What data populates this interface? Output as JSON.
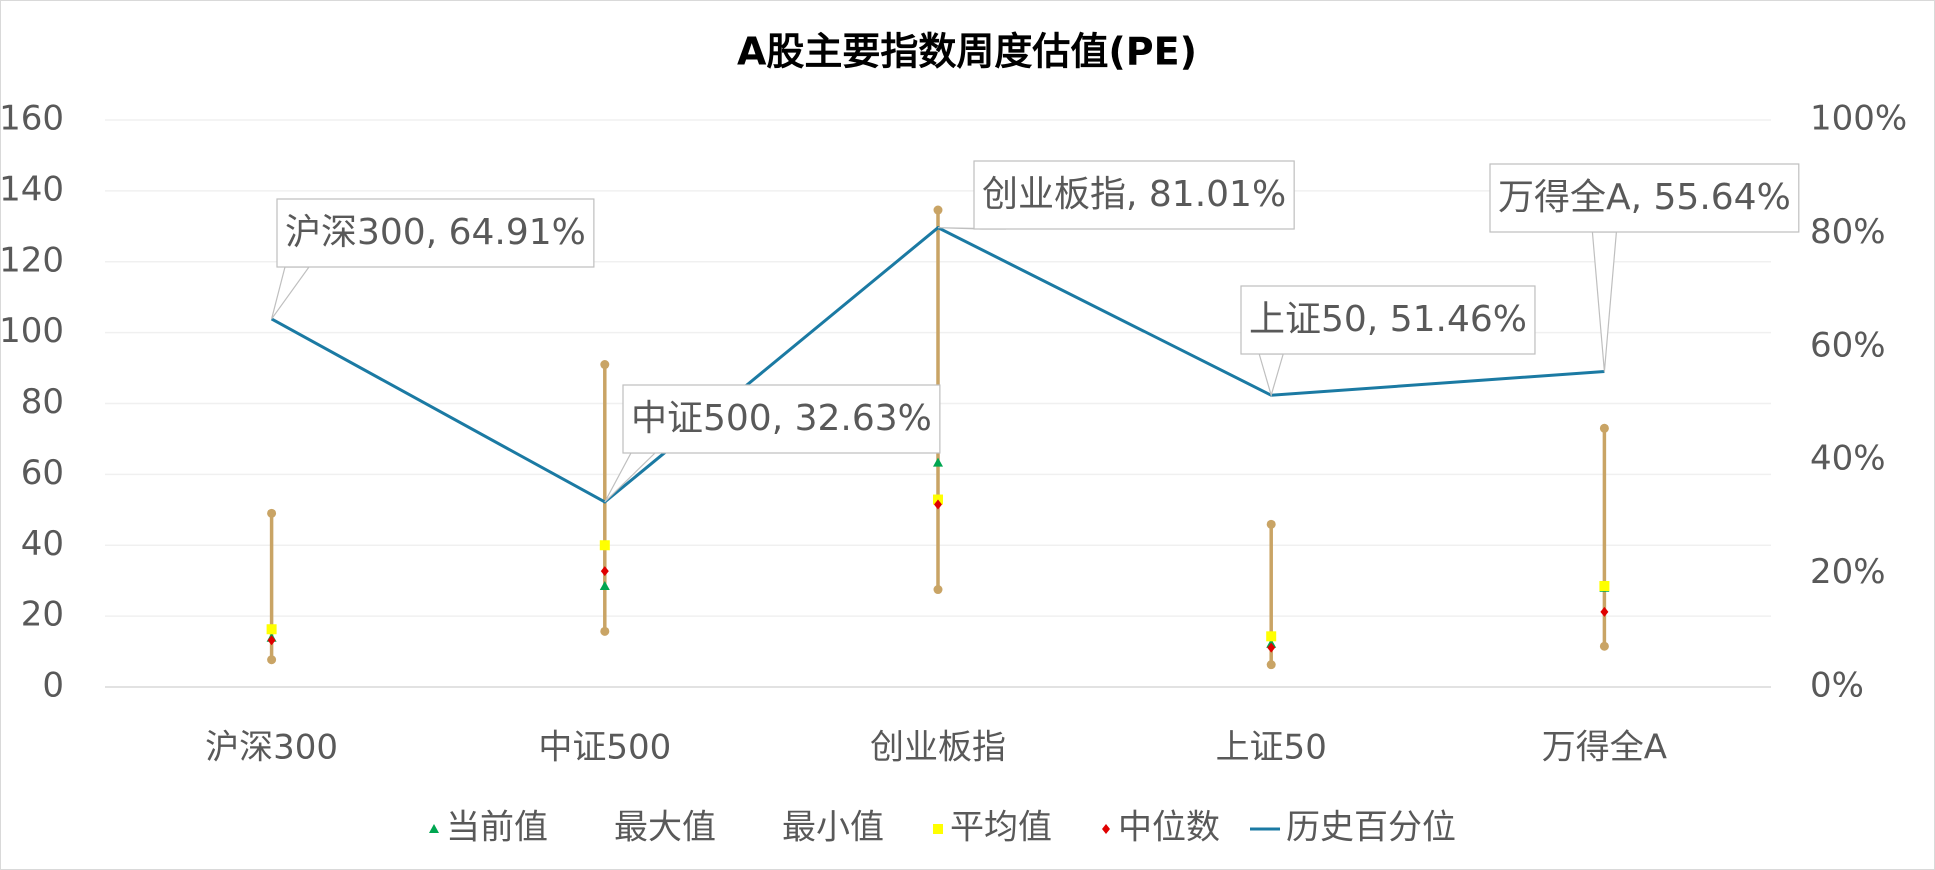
{
  "chart_data": {
    "type": "range",
    "title": "A股主要指数周度估值(PE)",
    "categories": [
      "沪深300",
      "中证500",
      "创业板指",
      "上证50",
      "万得全A"
    ],
    "series": [
      {
        "name": "当前值",
        "color": "#00a651",
        "marker": "triangle",
        "values": [
          13.9,
          28.5,
          63.3,
          12.2,
          28
        ]
      },
      {
        "name": "最大值",
        "color": "#c9a465",
        "marker": "circle",
        "values": [
          49,
          91,
          134.6,
          45.9,
          73
        ]
      },
      {
        "name": "最小值",
        "color": "#c9a465",
        "marker": "circle",
        "values": [
          7.7,
          15.7,
          27.5,
          6.3,
          11.5
        ]
      },
      {
        "name": "平均值",
        "color": "#ffff00",
        "marker": "square",
        "values": [
          16.3,
          40,
          52.9,
          14.3,
          28.5
        ]
      },
      {
        "name": "中位数",
        "color": "#e00000",
        "marker": "diamond",
        "values": [
          13.2,
          32.7,
          51.5,
          11.1,
          21.2
        ]
      },
      {
        "name": "历史百分位",
        "color": "#1b7aa3",
        "marker": "line",
        "axis": "y2",
        "values": [
          64.91,
          32.63,
          81.01,
          51.46,
          55.64
        ],
        "value_labels": [
          "沪深300, 64.91%",
          "中证500, 32.63%",
          "创业板指, 81.01%",
          "上证50, 51.46%",
          "万得全A, 55.64%"
        ]
      }
    ],
    "ylim": [
      0,
      160
    ],
    "yticks": [
      0,
      20,
      40,
      60,
      80,
      100,
      120,
      140,
      160
    ],
    "y2lim": [
      0,
      100
    ],
    "y2ticks": [
      {
        "value": 0,
        "label": "0%"
      },
      {
        "value": 20,
        "label": "20%"
      },
      {
        "value": 40,
        "label": "40%"
      },
      {
        "value": 60,
        "label": "60%"
      },
      {
        "value": 80,
        "label": "80%"
      },
      {
        "value": 100,
        "label": "100%"
      }
    ],
    "grid": true,
    "legend": "bottom"
  }
}
